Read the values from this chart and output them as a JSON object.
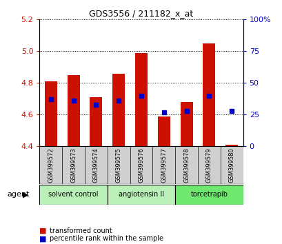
{
  "title": "GDS3556 / 211182_x_at",
  "samples": [
    "GSM399572",
    "GSM399573",
    "GSM399574",
    "GSM399575",
    "GSM399576",
    "GSM399577",
    "GSM399578",
    "GSM399579",
    "GSM399580"
  ],
  "transformed_counts": [
    4.81,
    4.85,
    4.71,
    4.86,
    4.99,
    4.59,
    4.68,
    5.05,
    4.41
  ],
  "percentile_ranks": [
    37,
    36,
    33,
    36,
    40,
    27,
    28,
    40,
    28
  ],
  "base_value": 4.4,
  "ylim_left": [
    4.4,
    5.2
  ],
  "ylim_right": [
    0,
    100
  ],
  "yticks_left": [
    4.4,
    4.6,
    4.8,
    5.0,
    5.2
  ],
  "yticks_right": [
    0,
    25,
    50,
    75,
    100
  ],
  "group_labels": [
    "solvent control",
    "angiotensin II",
    "torcetrapib"
  ],
  "group_starts": [
    0,
    3,
    6
  ],
  "group_ends": [
    2,
    5,
    8
  ],
  "group_colors": [
    "#b8f0b8",
    "#b8f0b8",
    "#70e870"
  ],
  "bar_color": "#cc1100",
  "dot_color": "#0000cc",
  "bar_width": 0.55,
  "grid_color": "black",
  "tick_label_color_left": "#cc1100",
  "tick_label_color_right": "#0000cc",
  "legend_items": [
    "transformed count",
    "percentile rank within the sample"
  ],
  "agent_label": "agent"
}
